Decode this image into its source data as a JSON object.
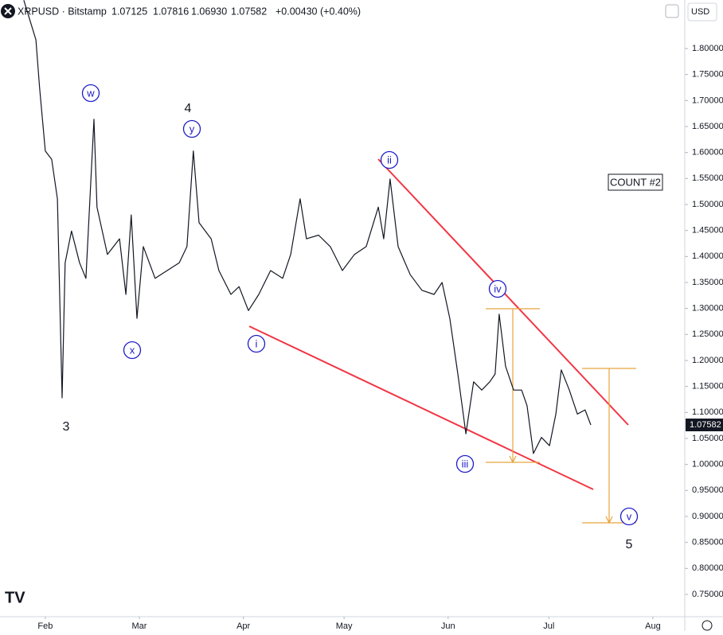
{
  "chart_data": {
    "type": "line",
    "header": {
      "symbol": "XRPUSD · Bitstamp",
      "open": "1.07125",
      "high": "1.07816",
      "low": "1.06930",
      "close": "1.07582",
      "change": "+0.00430",
      "change_pct": "(+0.40%)",
      "currency": "USD"
    },
    "x": [
      25.6,
      29.2,
      30.3,
      32.0,
      33.9,
      35.6,
      37.0,
      37.9,
      39.8,
      42.2,
      44.1,
      46.5,
      47.4,
      50.5,
      54.1,
      56.0,
      57.6,
      59.3,
      61.2,
      64.7,
      68.3,
      71.9,
      74.2,
      76.1,
      77.8,
      81.4,
      83.7,
      87.3,
      89.7,
      92.5,
      95.6,
      99.1,
      102.7,
      105.1,
      107.9,
      109.8,
      113.4,
      116.9,
      120.5,
      124.1,
      127.6,
      131.2,
      132.8,
      134.7,
      137.1,
      140.7,
      144.2,
      147.8,
      150.2,
      152.5,
      154.9,
      157.3,
      159.6,
      162.0,
      164.4,
      166.0,
      167.2,
      169.1,
      171.5,
      173.9,
      175.5,
      177.4,
      179.8,
      182.2,
      184.1,
      185.7,
      188.1,
      190.5,
      192.8,
      194.5
    ],
    "values": [
      1.893,
      1.817,
      1.725,
      1.603,
      1.587,
      1.511,
      1.128,
      1.388,
      1.449,
      1.388,
      1.358,
      1.664,
      1.495,
      1.404,
      1.434,
      1.327,
      1.48,
      1.281,
      1.419,
      1.358,
      1.373,
      1.388,
      1.419,
      1.603,
      1.465,
      1.434,
      1.373,
      1.327,
      1.342,
      1.296,
      1.327,
      1.373,
      1.358,
      1.404,
      1.511,
      1.434,
      1.441,
      1.419,
      1.373,
      1.404,
      1.419,
      1.495,
      1.434,
      1.549,
      1.419,
      1.365,
      1.335,
      1.327,
      1.35,
      1.281,
      1.174,
      1.059,
      1.159,
      1.143,
      1.159,
      1.174,
      1.289,
      1.189,
      1.143,
      1.143,
      1.113,
      1.021,
      1.052,
      1.036,
      1.097,
      1.182,
      1.143,
      1.097,
      1.105,
      1.076
    ],
    "color": "#131722",
    "xlim": [
      18.5,
      222.5
    ],
    "xticks": [
      {
        "value": 32,
        "label": "Feb"
      },
      {
        "value": 60,
        "label": "Mar"
      },
      {
        "value": 91,
        "label": "Apr"
      },
      {
        "value": 121,
        "label": "May"
      },
      {
        "value": 152,
        "label": "Jun"
      },
      {
        "value": 182,
        "label": "Jul"
      },
      {
        "value": 213,
        "label": "Aug"
      }
    ],
    "ylim": [
      0.7071,
      1.8934
    ],
    "yticks": [
      {
        "value": 0.75,
        "label": "0.75000"
      },
      {
        "value": 0.8,
        "label": "0.80000"
      },
      {
        "value": 0.85,
        "label": "0.85000"
      },
      {
        "value": 0.9,
        "label": "0.90000"
      },
      {
        "value": 0.95,
        "label": "0.95000"
      },
      {
        "value": 1.0,
        "label": "1.00000"
      },
      {
        "value": 1.05,
        "label": "1.05000"
      },
      {
        "value": 1.1,
        "label": "1.10000"
      },
      {
        "value": 1.15,
        "label": "1.15000"
      },
      {
        "value": 1.2,
        "label": "1.20000"
      },
      {
        "value": 1.25,
        "label": "1.25000"
      },
      {
        "value": 1.3,
        "label": "1.30000"
      },
      {
        "value": 1.35,
        "label": "1.35000"
      },
      {
        "value": 1.4,
        "label": "1.40000"
      },
      {
        "value": 1.45,
        "label": "1.45000"
      },
      {
        "value": 1.5,
        "label": "1.50000"
      },
      {
        "value": 1.55,
        "label": "1.55000"
      },
      {
        "value": 1.6,
        "label": "1.60000"
      },
      {
        "value": 1.65,
        "label": "1.65000"
      },
      {
        "value": 1.7,
        "label": "1.70000"
      },
      {
        "value": 1.75,
        "label": "1.75000"
      },
      {
        "value": 1.8,
        "label": "1.80000"
      }
    ],
    "annotations": [
      "w",
      "x",
      "y",
      "4",
      "3",
      "i",
      "ii",
      "iii",
      "iv",
      "v",
      "5",
      "COUNT #2"
    ]
  }
}
